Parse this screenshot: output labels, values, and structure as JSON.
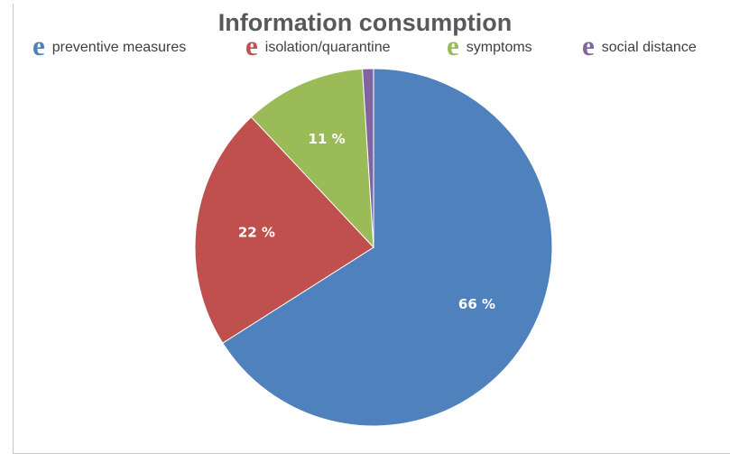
{
  "chart_data": {
    "type": "pie",
    "title": "Information consumption",
    "legend_position": "top",
    "slices": [
      {
        "name": "preventive measures",
        "value": 66,
        "label": "66 %",
        "color": "#4f81bd"
      },
      {
        "name": "isolation/quarantine",
        "value": 22,
        "label": "22 %",
        "color": "#c0504d"
      },
      {
        "name": "symptoms",
        "value": 11,
        "label": "11 %",
        "color": "#9bbb59"
      },
      {
        "name": "social distance",
        "value": 1,
        "label": "",
        "color": "#8064a2"
      }
    ]
  },
  "legend": {
    "marker_glyph": "e"
  }
}
